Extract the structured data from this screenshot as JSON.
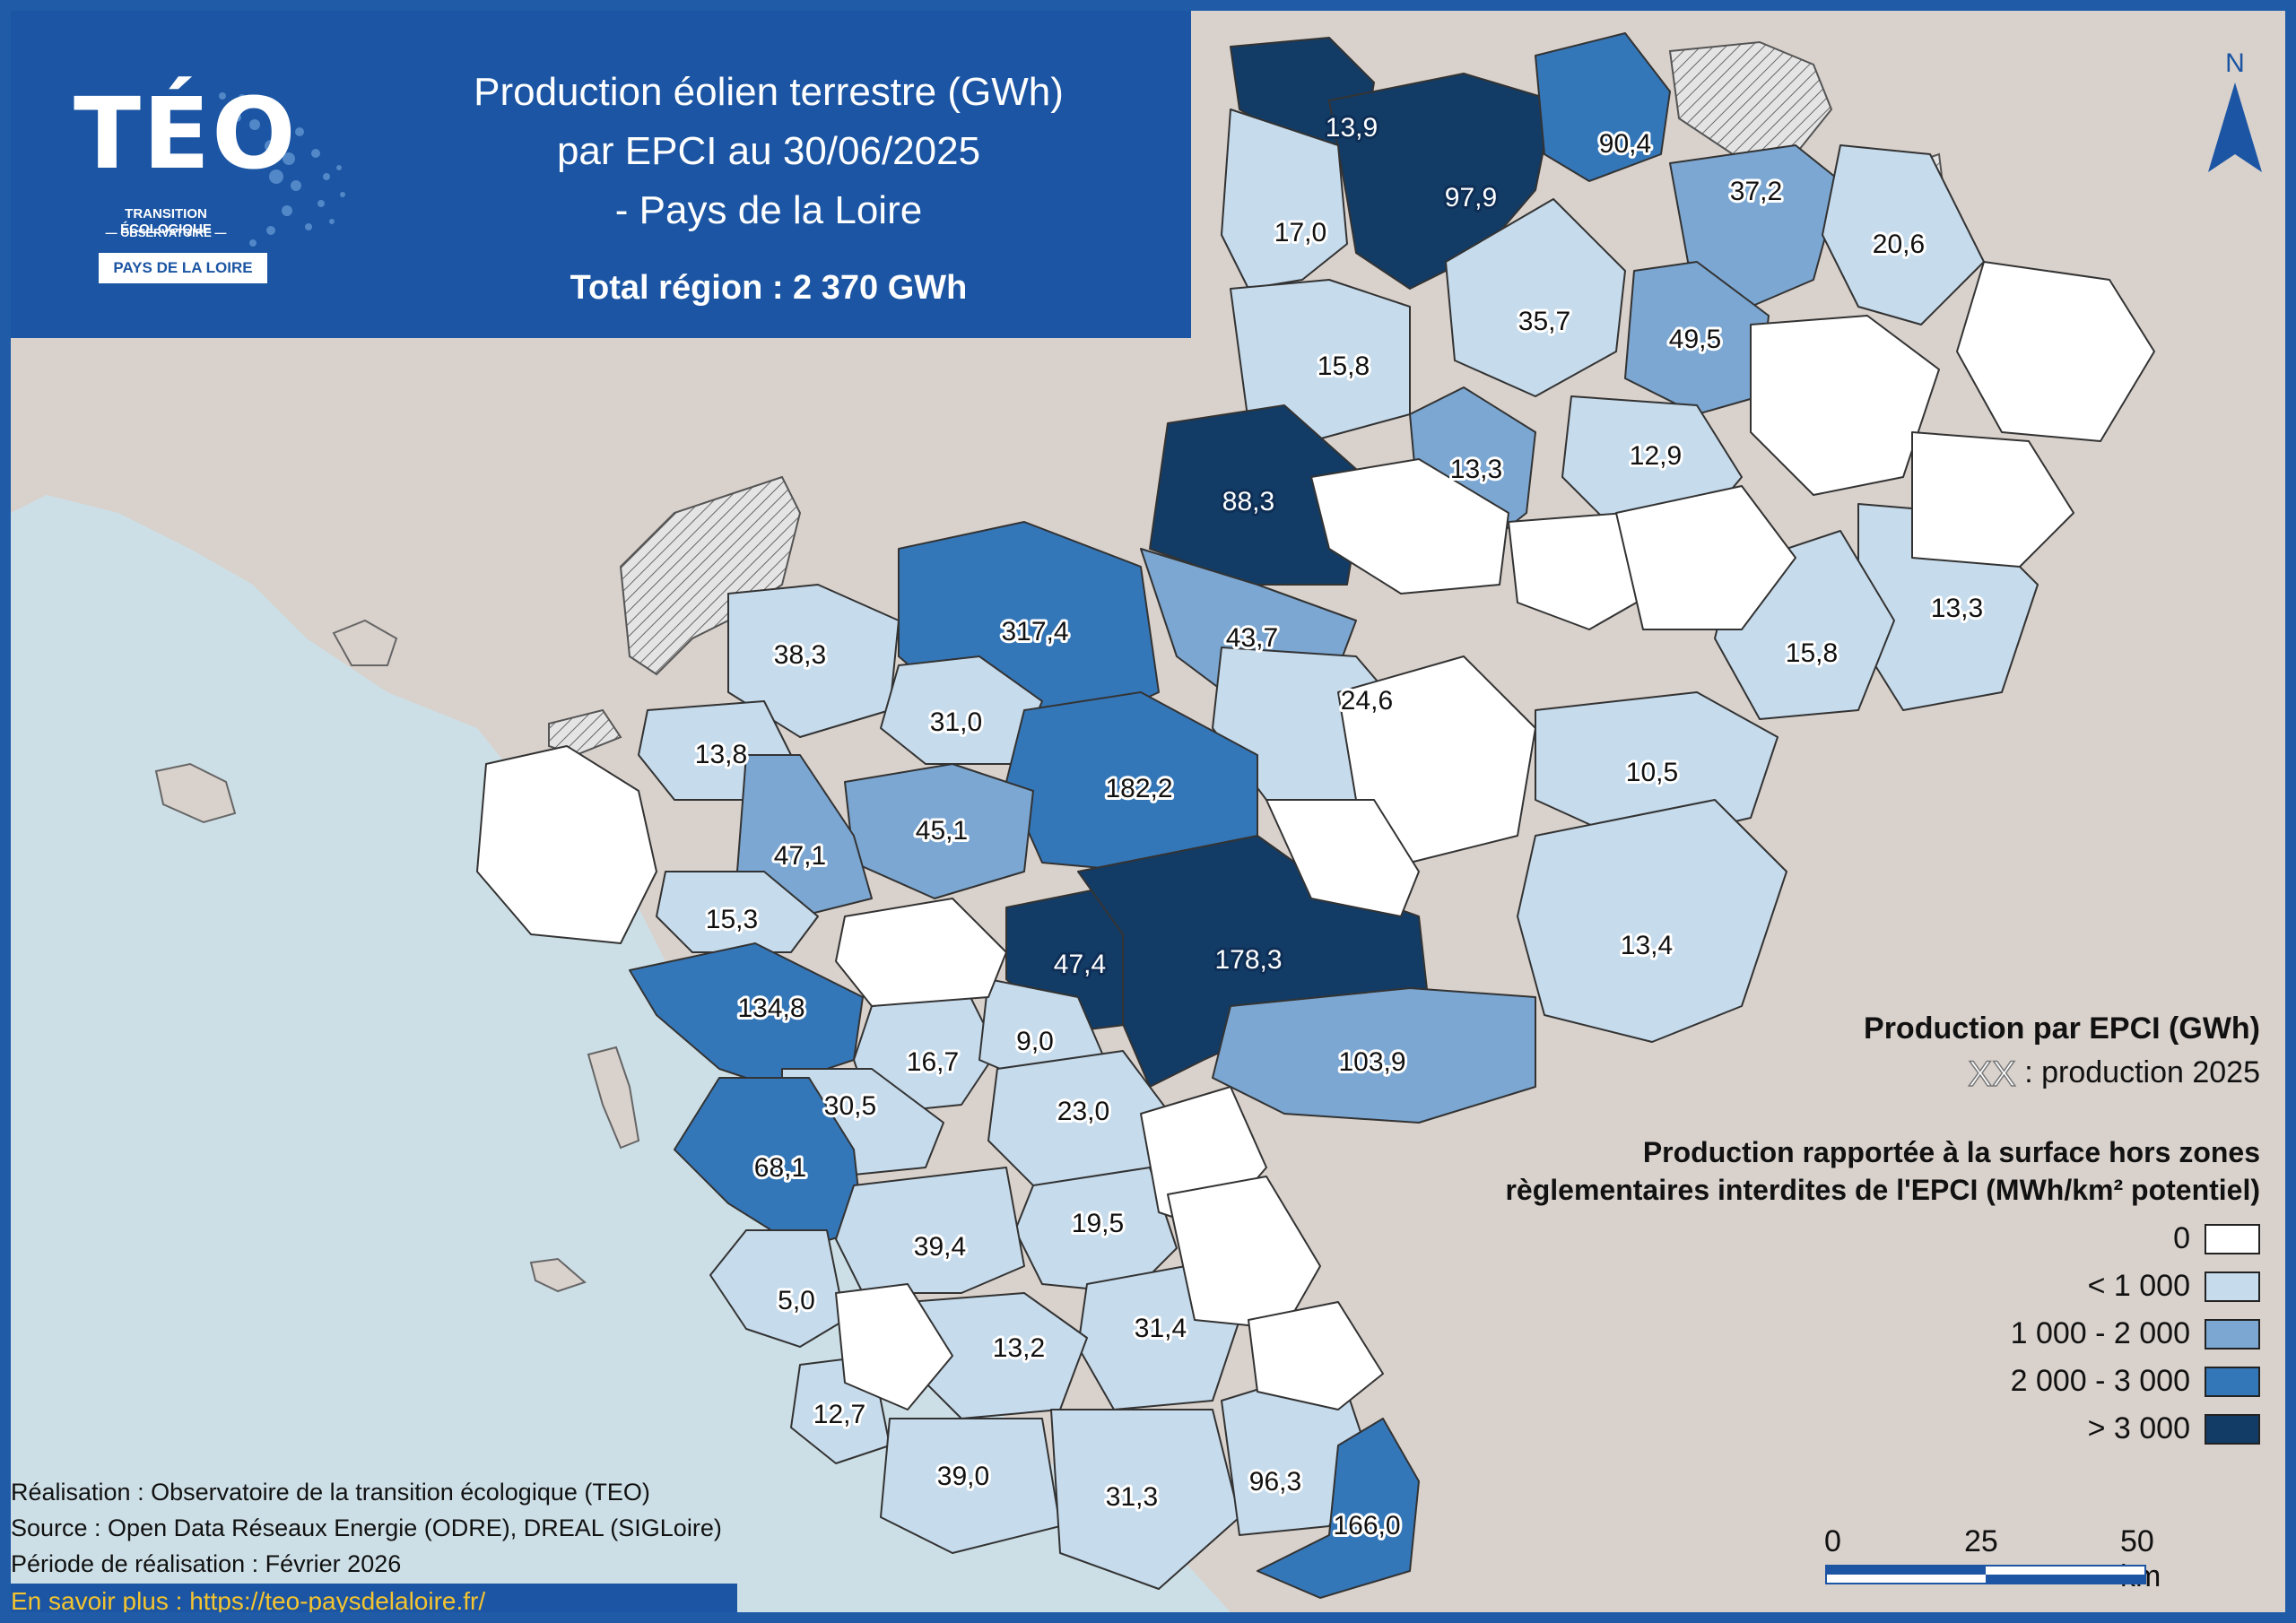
{
  "header": {
    "logo_text": "TÉO",
    "logo_sub1": "TRANSITION ÉCOLOGIQUE",
    "logo_sub2": "— OBSERVATOIRE —",
    "logo_region": "PAYS DE LA LOIRE",
    "title_line1": "Production éolien terrestre (GWh)",
    "title_line2": "par EPCI au 30/06/2025",
    "title_line3": "- Pays de la Loire",
    "total": "Total région : 2 370 GWh"
  },
  "legend": {
    "title": "Production par EPCI (GWh)",
    "hatch_label": ": production 2025",
    "subtitle_line1": "Production rapportée à la surface hors zones",
    "subtitle_line2": "règlementaires interdites de l'EPCI (MWh/km² potentiel)",
    "classes": [
      {
        "label": "0",
        "color": "#ffffff"
      },
      {
        "label": "< 1 000",
        "color": "#c6dbec"
      },
      {
        "label": "1 000 - 2 000",
        "color": "#7ba7d2"
      },
      {
        "label": "2 000 - 3 000",
        "color": "#3477b9"
      },
      {
        "label": "> 3 000",
        "color": "#123c66"
      }
    ]
  },
  "scale": {
    "labels": [
      "0",
      "25",
      "50 km"
    ]
  },
  "north": "N",
  "credits": {
    "line1": "Réalisation : Observatoire de la transition écologique (TEO)",
    "line2": "Source : Open Data Réseaux Energie (ODRE), DREAL (SIGLoire)",
    "line3": "Période de réalisation : Février 2026",
    "link": "En savoir plus : https://teo-paysdelaloire.fr/"
  },
  "colors": {
    "frame": "#1f5ba6",
    "land_outside": "#d8d1cc",
    "sea": "#cddfe6",
    "class0": "#ffffff",
    "class1": "#c6dbec",
    "class2": "#7ba7d2",
    "class3": "#3477b9",
    "class4": "#123c66"
  },
  "map": {
    "epci": [
      {
        "value": "13,9",
        "class": 4
      },
      {
        "value": "97,9",
        "class": 4
      },
      {
        "value": "90,4",
        "class": 3
      },
      {
        "value": "17,0",
        "class": 1
      },
      {
        "value": "37,2",
        "class": 2
      },
      {
        "value": "20,6",
        "class": 1
      },
      {
        "value": "35,7",
        "class": 1
      },
      {
        "value": "49,5",
        "class": 2
      },
      {
        "value": "15,8",
        "class": 1
      },
      {
        "value": "13,3",
        "class": 2
      },
      {
        "value": "12,9",
        "class": 1
      },
      {
        "value": "88,3",
        "class": 4
      },
      {
        "value": "43,7",
        "class": 2
      },
      {
        "value": "13,3",
        "class": 1
      },
      {
        "value": "15,8",
        "class": 1
      },
      {
        "value": "317,4",
        "class": 3
      },
      {
        "value": "38,3",
        "class": 1
      },
      {
        "value": "24,6",
        "class": 1
      },
      {
        "value": "31,0",
        "class": 1
      },
      {
        "value": "182,2",
        "class": 3
      },
      {
        "value": "13,8",
        "class": 1
      },
      {
        "value": "10,5",
        "class": 1
      },
      {
        "value": "45,1",
        "class": 2
      },
      {
        "value": "47,1",
        "class": 2
      },
      {
        "value": "15,3",
        "class": 1
      },
      {
        "value": "47,4",
        "class": 4
      },
      {
        "value": "178,3",
        "class": 4
      },
      {
        "value": "13,4",
        "class": 1
      },
      {
        "value": "134,8",
        "class": 3
      },
      {
        "value": "16,7",
        "class": 1
      },
      {
        "value": "9,0",
        "class": 1
      },
      {
        "value": "103,9",
        "class": 2
      },
      {
        "value": "30,5",
        "class": 1
      },
      {
        "value": "23,0",
        "class": 1
      },
      {
        "value": "68,1",
        "class": 3
      },
      {
        "value": "19,5",
        "class": 1
      },
      {
        "value": "39,4",
        "class": 1
      },
      {
        "value": "5,0",
        "class": 1
      },
      {
        "value": "31,4",
        "class": 1
      },
      {
        "value": "13,2",
        "class": 1
      },
      {
        "value": "12,7",
        "class": 1
      },
      {
        "value": "39,0",
        "class": 1
      },
      {
        "value": "31,3",
        "class": 1
      },
      {
        "value": "96,3",
        "class": 1
      },
      {
        "value": "166,0",
        "class": 3
      }
    ]
  }
}
